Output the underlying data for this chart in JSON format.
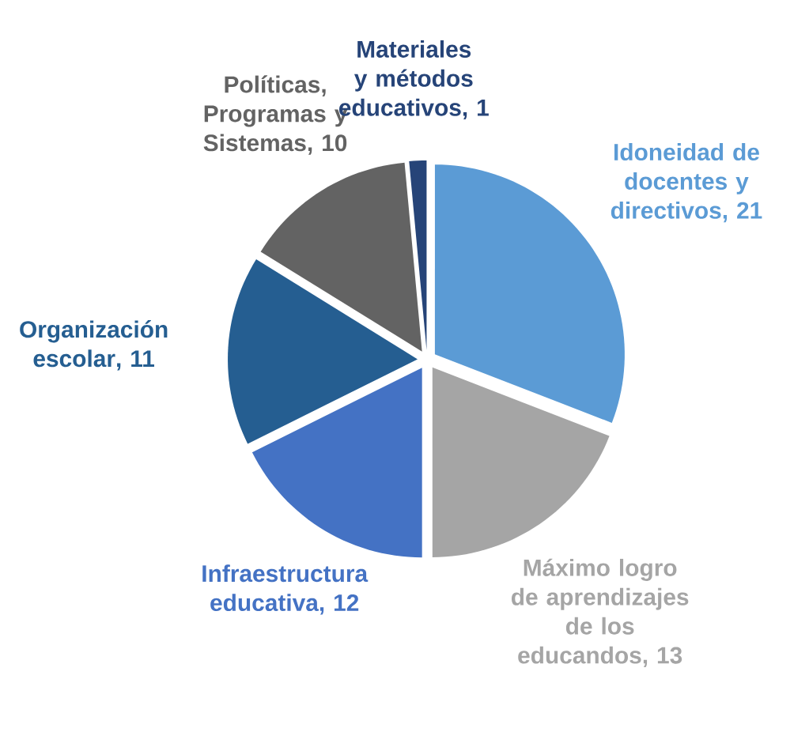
{
  "chart_data": {
    "type": "pie",
    "categories": [
      "Idoneidad de docentes y directivos",
      "Máximo logro de aprendizajes de los educandos",
      "Infraestructura educativa",
      "Organización escolar",
      "Políticas, Programas y Sistemas",
      "Materiales y métodos educativos"
    ],
    "values": [
      21,
      13,
      12,
      11,
      10,
      1
    ],
    "colors": [
      "#5b9bd5",
      "#a5a5a5",
      "#4472c4",
      "#255e91",
      "#636363",
      "#264478"
    ],
    "value_labels": [
      ", 21",
      ", 13",
      ", 12",
      ", 11",
      ", 10",
      ", 1"
    ]
  }
}
